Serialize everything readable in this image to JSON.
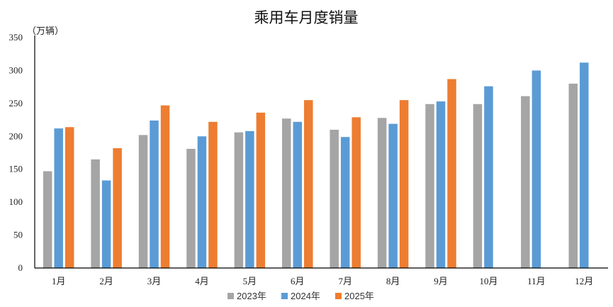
{
  "chart_data": {
    "type": "bar",
    "title": "乘用车月度销量",
    "unit_label": "（万辆）",
    "categories": [
      "1月",
      "2月",
      "3月",
      "4月",
      "5月",
      "6月",
      "7月",
      "8月",
      "9月",
      "10月",
      "11月",
      "12月"
    ],
    "series": [
      {
        "name": "2023年",
        "color": "#a5a5a5",
        "values": [
          147,
          165,
          202,
          181,
          206,
          227,
          210,
          228,
          249,
          249,
          261,
          280
        ]
      },
      {
        "name": "2024年",
        "color": "#5b9bd5",
        "values": [
          212,
          133,
          224,
          200,
          208,
          222,
          199,
          219,
          253,
          276,
          300,
          312
        ]
      },
      {
        "name": "2025年",
        "color": "#ed7d31",
        "values": [
          214,
          182,
          247,
          222,
          236,
          255,
          229,
          255,
          287,
          null,
          null,
          null
        ]
      }
    ],
    "y_ticks": [
      "0",
      "50",
      "100",
      "150",
      "200",
      "250",
      "300",
      "350"
    ],
    "ylim": [
      0,
      350
    ],
    "grid": false,
    "legend_position": "bottom"
  }
}
